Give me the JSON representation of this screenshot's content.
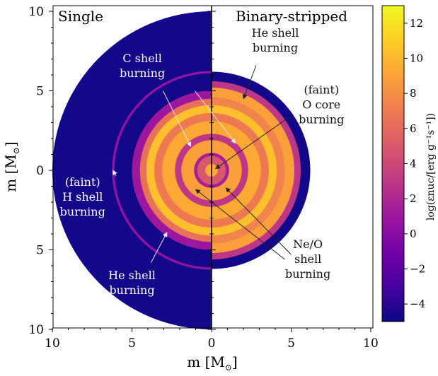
{
  "chart_data": {
    "type": "heatmap",
    "title": "",
    "panels": {
      "left": "Single",
      "right": "Binary-stripped"
    },
    "xlabel": "m [M",
    "ylabel": "m [M",
    "unit_sub": "⊙",
    "xlim": [
      -10,
      10
    ],
    "ylim": [
      -10,
      10
    ],
    "x_ticks": [
      {
        "value": -10,
        "label": "10"
      },
      {
        "value": -5,
        "label": "5"
      },
      {
        "value": 0,
        "label": "0"
      },
      {
        "value": 5,
        "label": "5"
      },
      {
        "value": 10,
        "label": "10"
      }
    ],
    "y_ticks": [
      {
        "value": 10,
        "label": "10"
      },
      {
        "value": 5,
        "label": "5"
      },
      {
        "value": 0,
        "label": "0"
      },
      {
        "value": -5,
        "label": "5"
      },
      {
        "value": -10,
        "label": "10"
      }
    ],
    "colorbar": {
      "label": "log(εnuc/[erg g⁻¹s⁻¹])",
      "range": [
        -5,
        13
      ],
      "ticks": [
        12,
        10,
        8,
        6,
        4,
        2,
        0,
        -2,
        -4
      ],
      "tick_labels": [
        "12",
        "10",
        "8",
        "6",
        "4",
        "2",
        "0",
        "−2",
        "−4"
      ],
      "colormap": [
        "#0d0887",
        "#46039f",
        "#7201a8",
        "#9c179e",
        "#bd3786",
        "#d8576b",
        "#ed7953",
        "#fb9f3a",
        "#fdca26",
        "#f0f921"
      ]
    },
    "single_star": {
      "total_radius": 10.0,
      "rings": [
        {
          "r_in": 0.0,
          "r_out": 0.4,
          "value": 9.5
        },
        {
          "r_in": 0.4,
          "r_out": 0.9,
          "value": 5.0
        },
        {
          "r_in": 0.9,
          "r_out": 1.1,
          "value": 1.5
        },
        {
          "r_in": 1.1,
          "r_out": 1.9,
          "value": 9.0
        },
        {
          "r_in": 1.9,
          "r_out": 2.3,
          "value": 3.0
        },
        {
          "r_in": 2.3,
          "r_out": 3.1,
          "value": 9.5
        },
        {
          "r_in": 3.1,
          "r_out": 3.6,
          "value": 7.0
        },
        {
          "r_in": 3.6,
          "r_out": 4.1,
          "value": 10.5
        },
        {
          "r_in": 4.1,
          "r_out": 4.5,
          "value": 6.5
        },
        {
          "r_in": 4.5,
          "r_out": 5.0,
          "value": 1.0
        },
        {
          "r_in": 5.0,
          "r_out": 6.1,
          "value": -4.8
        },
        {
          "r_in": 6.1,
          "r_out": 6.25,
          "value": 0.5
        },
        {
          "r_in": 6.25,
          "r_out": 10.0,
          "value": -4.8
        }
      ]
    },
    "binary_star": {
      "total_radius": 6.2,
      "rings": [
        {
          "r_in": 0.0,
          "r_out": 0.4,
          "value": 9.5
        },
        {
          "r_in": 0.4,
          "r_out": 0.9,
          "value": 5.0
        },
        {
          "r_in": 0.9,
          "r_out": 1.1,
          "value": 1.5
        },
        {
          "r_in": 1.1,
          "r_out": 1.9,
          "value": 9.0
        },
        {
          "r_in": 1.9,
          "r_out": 2.3,
          "value": 3.0
        },
        {
          "r_in": 2.3,
          "r_out": 3.1,
          "value": 9.5
        },
        {
          "r_in": 3.1,
          "r_out": 3.6,
          "value": 7.0
        },
        {
          "r_in": 3.6,
          "r_out": 4.1,
          "value": 10.5
        },
        {
          "r_in": 4.1,
          "r_out": 4.6,
          "value": 7.5
        },
        {
          "r_in": 4.6,
          "r_out": 5.2,
          "value": 9.0
        },
        {
          "r_in": 5.2,
          "r_out": 5.6,
          "value": 3.0
        },
        {
          "r_in": 5.6,
          "r_out": 6.2,
          "value": -4.8
        }
      ]
    },
    "annotations": [
      {
        "id": "c-shell",
        "lines": [
          "C shell",
          "burning"
        ],
        "text_x": -4.35,
        "text_y": 6.6,
        "arrows": [
          {
            "from": [
              -3.05,
              5.0
            ],
            "to": [
              -1.3,
              1.5
            ]
          },
          {
            "from": [
              -1.05,
              5.0
            ],
            "to": [
              1.5,
              1.7
            ]
          }
        ]
      },
      {
        "id": "he-shell-right",
        "lines": [
          "He shell",
          "burning"
        ],
        "text_x": 4.0,
        "text_y": 8.2,
        "arrows": [
          {
            "from": [
              2.8,
              6.6
            ],
            "to": [
              2.0,
              4.5
            ]
          }
        ]
      },
      {
        "id": "o-core",
        "lines": [
          "(faint)",
          "O core",
          "burning"
        ],
        "text_x": 6.9,
        "text_y": 4.15,
        "arrows": [
          {
            "from": [
              5.1,
              3.5
            ],
            "to": [
              0.25,
              0.1
            ]
          }
        ]
      },
      {
        "id": "h-shell",
        "lines": [
          "(faint)",
          "H shell",
          "burning"
        ],
        "text_x": -8.1,
        "text_y": -1.65,
        "arrows": [
          {
            "from": [
              -6.0,
              -0.35
            ],
            "to": [
              -6.2,
              0.0
            ]
          }
        ]
      },
      {
        "id": "he-shell-left",
        "lines": [
          "He shell",
          "burning"
        ],
        "text_x": -5.0,
        "text_y": -7.05,
        "arrows": [
          {
            "from": [
              -3.8,
              -5.8
            ],
            "to": [
              -2.8,
              -3.9
            ]
          }
        ]
      },
      {
        "id": "neo-shell",
        "lines": [
          "Ne/O",
          "shell",
          "burning"
        ],
        "text_x": 6.05,
        "text_y": -5.55,
        "arrows": [
          {
            "from": [
              4.6,
              -5.6
            ],
            "to": [
              -1.0,
              -1.2
            ]
          },
          {
            "from": [
              5.0,
              -5.3
            ],
            "to": [
              0.9,
              -1.1
            ]
          }
        ]
      }
    ]
  }
}
